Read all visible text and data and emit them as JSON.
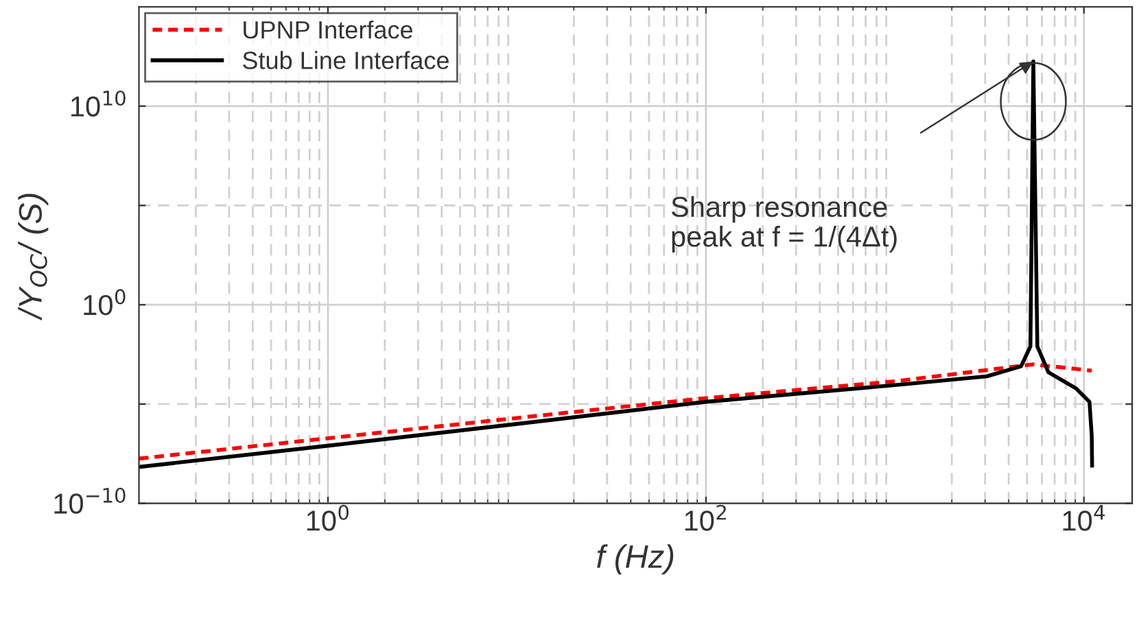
{
  "chart_data": {
    "type": "line",
    "xlabel": "f (Hz)",
    "ylabel": "/Y$_{OC}$/ (S)",
    "log": "xy",
    "xlim": [
      0.1,
      18000
    ],
    "ylim": [
      1e-10,
      1000000000000000.0
    ],
    "xticks": [
      {
        "value": 1,
        "label": "10$^{0}$"
      },
      {
        "value": 100,
        "label": "10$^{2}$"
      },
      {
        "value": 10000,
        "label": "10$^{4}$"
      }
    ],
    "yticks": [
      {
        "value": 1e-10,
        "label": "10$^{−10}$"
      },
      {
        "value": 1e-05,
        "label": null
      },
      {
        "value": 1,
        "label": "10$^{0}$"
      },
      {
        "value": 100000,
        "label": null
      },
      {
        "value": 10000000000.0,
        "label": "10$^{10}$"
      }
    ],
    "grid": true,
    "legend": "top left",
    "series": [
      {
        "name": "UPNP Interface",
        "color": "#ff0000",
        "line_style": "dashed",
        "x": [
          0.1,
          1,
          10,
          100,
          1000,
          5400,
          11000
        ],
        "values": [
          1.8e-08,
          1.9e-07,
          2e-06,
          2e-05,
          0.00014,
          0.001,
          0.00048
        ]
      },
      {
        "name": "Stub Line Interface",
        "color": "#000000",
        "line_style": "solid",
        "x": [
          0.1,
          1,
          10,
          100,
          1000,
          3060,
          4650,
          5210,
          5400,
          5670,
          6490,
          9060,
          10700,
          11000,
          11050
        ],
        "values": [
          6.8e-09,
          8e-08,
          1e-06,
          1.3e-05,
          9e-05,
          0.00025,
          0.0008,
          0.008,
          1800000000000.0,
          0.008,
          0.0004,
          6.3e-05,
          1.3e-05,
          2.5e-07,
          8e-09
        ]
      }
    ],
    "annotations": [
      "Sharp resonance\npeak at f = 1/(4Δt)"
    ]
  }
}
